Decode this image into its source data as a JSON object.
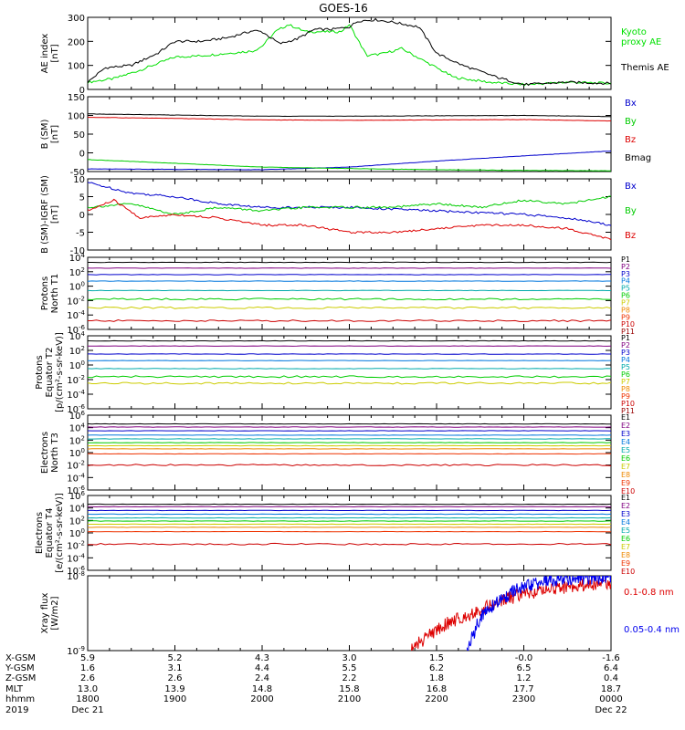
{
  "title": "GOES-16",
  "time_axis": {
    "tick_hours": [
      "1800",
      "1900",
      "2000",
      "2100",
      "2200",
      "2300",
      "0000"
    ],
    "ephemeris_rows": [
      {
        "label": "X-GSM",
        "values": [
          "5.9",
          "5.2",
          "4.3",
          "3.0",
          "1.5",
          "-0.0",
          "-1.6"
        ]
      },
      {
        "label": "Y-GSM",
        "values": [
          "1.6",
          "3.1",
          "4.4",
          "5.5",
          "6.2",
          "6.5",
          "6.4"
        ]
      },
      {
        "label": "Z-GSM",
        "values": [
          "2.6",
          "2.6",
          "2.4",
          "2.2",
          "1.8",
          "1.2",
          "0.4"
        ]
      },
      {
        "label": "MLT",
        "values": [
          "13.0",
          "13.9",
          "14.8",
          "15.8",
          "16.8",
          "17.7",
          "18.7"
        ]
      },
      {
        "label": "hhmm",
        "values": [
          "1800",
          "1900",
          "2000",
          "2100",
          "2200",
          "2300",
          "0000"
        ]
      }
    ],
    "year": "2019",
    "date_start": "Dec 21",
    "date_end": "Dec 22"
  },
  "chart_data": [
    {
      "type": "line",
      "ylabel": "AE index\n[nT]",
      "ylim": [
        0,
        300
      ],
      "yticks": [
        "0",
        "100",
        "200",
        "300"
      ],
      "series": [
        {
          "name": "Kyoto\nproxy AE",
          "color": "#00e000",
          "x": [
            0,
            0.3,
            0.6,
            1.0,
            1.3,
            1.6,
            1.9,
            2.0,
            2.15,
            2.3,
            2.5,
            2.7,
            2.9,
            3.0,
            3.2,
            3.4,
            3.6,
            3.8,
            4.0,
            4.2,
            4.6,
            5.0,
            5.5,
            6.0
          ],
          "values": [
            30,
            45,
            80,
            135,
            140,
            150,
            160,
            180,
            240,
            270,
            240,
            240,
            240,
            270,
            140,
            150,
            170,
            130,
            90,
            50,
            30,
            20,
            30,
            25
          ]
        },
        {
          "name": "Themis AE",
          "color": "#000000",
          "x": [
            0,
            0.2,
            0.5,
            0.8,
            1.0,
            1.3,
            1.6,
            1.9,
            2.0,
            2.2,
            2.4,
            2.6,
            2.8,
            3.0,
            3.1,
            3.3,
            3.5,
            3.8,
            4.0,
            4.3,
            4.7,
            5.0,
            5.5,
            6.0
          ],
          "values": [
            30,
            90,
            100,
            150,
            200,
            200,
            215,
            245,
            240,
            190,
            210,
            250,
            250,
            260,
            285,
            290,
            280,
            260,
            150,
            100,
            50,
            20,
            30,
            25
          ]
        }
      ]
    },
    {
      "type": "line",
      "ylabel": "B (SM)\n[nT]",
      "ylim": [
        -50,
        150
      ],
      "yticks": [
        "-50",
        "0",
        "50",
        "100",
        "150"
      ],
      "series": [
        {
          "name": "Bx",
          "color": "#0000cc",
          "x": [
            0,
            2,
            3,
            4,
            5,
            6
          ],
          "values": [
            -43,
            -45,
            -38,
            -22,
            -8,
            5
          ]
        },
        {
          "name": "By",
          "color": "#00cc00",
          "x": [
            0,
            1,
            2,
            3,
            4,
            5,
            6
          ],
          "values": [
            -18,
            -28,
            -38,
            -42,
            -45,
            -47,
            -48
          ]
        },
        {
          "name": "Bz",
          "color": "#dd0000",
          "x": [
            0,
            1,
            2,
            3,
            4,
            5,
            6
          ],
          "values": [
            95,
            92,
            88,
            87,
            88,
            89,
            85
          ]
        },
        {
          "name": "Bmag",
          "color": "#000000",
          "x": [
            0,
            1,
            2,
            3,
            4,
            5,
            6
          ],
          "values": [
            104,
            101,
            98,
            98,
            99,
            100,
            97
          ]
        }
      ]
    },
    {
      "type": "line",
      "ylabel": "B (SM)-IGRF (SM)\n[nT]",
      "ylim": [
        -10,
        10
      ],
      "yticks": [
        "-10",
        "-5",
        "0",
        "5",
        "10"
      ],
      "series": [
        {
          "name": "Bx",
          "color": "#0000cc",
          "x": [
            0,
            0.5,
            1,
            1.5,
            2,
            3,
            4,
            5,
            5.5,
            6
          ],
          "values": [
            9,
            6,
            5,
            3,
            2,
            2,
            1,
            0,
            -1,
            -3
          ]
        },
        {
          "name": "By",
          "color": "#00cc00",
          "x": [
            0,
            0.5,
            1,
            1.5,
            2,
            2.5,
            3,
            3.5,
            4,
            4.5,
            5,
            5.5,
            6
          ],
          "values": [
            2,
            3,
            0,
            2,
            1,
            2,
            2,
            2,
            3,
            2,
            4,
            3,
            5
          ]
        },
        {
          "name": "Bz",
          "color": "#dd0000",
          "x": [
            0,
            0.3,
            0.6,
            1,
            1.5,
            2,
            2.5,
            3,
            3.5,
            4,
            4.5,
            5,
            5.5,
            6
          ],
          "values": [
            1,
            4,
            -1,
            0,
            -1,
            -3,
            -3,
            -5,
            -5,
            -4,
            -3,
            -3,
            -4,
            -7
          ]
        }
      ]
    },
    {
      "type": "line",
      "ylabel": "Protons\nNorth T1",
      "ylim": [
        -6,
        4
      ],
      "yticks": [
        "10^4",
        "10^2",
        "10^0",
        "10^-2",
        "10^-4",
        "10^-6"
      ],
      "series": [
        {
          "name": "P1",
          "color": "#000000",
          "values": [
            3.3
          ]
        },
        {
          "name": "P2",
          "color": "#800080",
          "values": [
            2.5
          ]
        },
        {
          "name": "P3",
          "color": "#0000cc",
          "values": [
            1.6
          ]
        },
        {
          "name": "P4",
          "color": "#0077dd",
          "values": [
            0.7
          ]
        },
        {
          "name": "P5",
          "color": "#00aaaa",
          "values": [
            -0.6
          ]
        },
        {
          "name": "P6",
          "color": "#00cc00",
          "values": [
            -1.8
          ]
        },
        {
          "name": "P7",
          "color": "#cccc00",
          "values": [
            -3.0
          ]
        },
        {
          "name": "P8",
          "color": "#ee8800",
          "values": []
        },
        {
          "name": "P9",
          "color": "#ee3300",
          "values": []
        },
        {
          "name": "P10",
          "color": "#cc0000",
          "values": [
            -4.8
          ]
        },
        {
          "name": "P11",
          "color": "#990000",
          "values": []
        }
      ]
    },
    {
      "type": "line",
      "ylabel": "Protons\nEquator T2\n[p/(cm²-s-sr-keV)]",
      "ylim": [
        -6,
        4
      ],
      "yticks": [
        "10^4",
        "10^2",
        "10^0",
        "10^-2",
        "10^-4",
        "10^-6"
      ],
      "series": [
        {
          "name": "P1",
          "color": "#000000",
          "values": [
            3.3
          ]
        },
        {
          "name": "P2",
          "color": "#800080",
          "values": [
            2.6
          ]
        },
        {
          "name": "P3",
          "color": "#0000cc",
          "values": [
            1.5
          ]
        },
        {
          "name": "P4",
          "color": "#0077dd",
          "values": [
            0.6
          ]
        },
        {
          "name": "P5",
          "color": "#00aaaa",
          "values": [
            -0.5
          ]
        },
        {
          "name": "P6",
          "color": "#00cc00",
          "values": [
            -1.6
          ]
        },
        {
          "name": "P7",
          "color": "#cccc00",
          "values": [
            -2.5
          ]
        },
        {
          "name": "P8",
          "color": "#ee8800",
          "values": []
        },
        {
          "name": "P9",
          "color": "#ee3300",
          "values": []
        },
        {
          "name": "P10",
          "color": "#cc0000",
          "values": []
        },
        {
          "name": "P11",
          "color": "#990000",
          "values": []
        }
      ]
    },
    {
      "type": "line",
      "ylabel": "Electrons\nNorth T3",
      "ylim": [
        -6,
        6
      ],
      "yticks": [
        "10^6",
        "10^4",
        "10^2",
        "10^0",
        "10^-2",
        "10^-4",
        "10^-6"
      ],
      "series": [
        {
          "name": "E1",
          "color": "#000000",
          "values": [
            4.6
          ]
        },
        {
          "name": "E2",
          "color": "#800080",
          "values": [
            4.1
          ]
        },
        {
          "name": "E3",
          "color": "#0000cc",
          "values": [
            3.5
          ]
        },
        {
          "name": "E4",
          "color": "#0077dd",
          "values": [
            2.8
          ]
        },
        {
          "name": "E5",
          "color": "#00aaaa",
          "values": [
            2.2
          ]
        },
        {
          "name": "E6",
          "color": "#00cc00",
          "values": [
            1.6
          ]
        },
        {
          "name": "E7",
          "color": "#cccc00",
          "values": [
            1.1
          ]
        },
        {
          "name": "E8",
          "color": "#ee8800",
          "values": [
            0.6
          ]
        },
        {
          "name": "E9",
          "color": "#ee3300",
          "values": [
            -0.2
          ]
        },
        {
          "name": "E10",
          "color": "#cc0000",
          "values": [
            -2.0
          ]
        }
      ]
    },
    {
      "type": "line",
      "ylabel": "Electrons\nEquator T4\n[e/(cm²-s-sr-keV)]",
      "ylim": [
        -6,
        6
      ],
      "yticks": [
        "10^6",
        "10^4",
        "10^2",
        "10^0",
        "10^-2",
        "10^-4",
        "10^-6"
      ],
      "series": [
        {
          "name": "E1",
          "color": "#000000",
          "values": [
            4.6
          ]
        },
        {
          "name": "E2",
          "color": "#800080",
          "values": [
            4.2
          ]
        },
        {
          "name": "E3",
          "color": "#0000cc",
          "values": [
            3.6
          ]
        },
        {
          "name": "E4",
          "color": "#0077dd",
          "values": [
            3.0
          ]
        },
        {
          "name": "E5",
          "color": "#00aaaa",
          "values": [
            2.4
          ]
        },
        {
          "name": "E6",
          "color": "#00cc00",
          "values": [
            1.9
          ]
        },
        {
          "name": "E7",
          "color": "#cccc00",
          "values": [
            1.4
          ]
        },
        {
          "name": "E8",
          "color": "#ee8800",
          "values": [
            0.9
          ]
        },
        {
          "name": "E9",
          "color": "#ee3300",
          "values": [
            0.2
          ]
        },
        {
          "name": "E10",
          "color": "#cc0000",
          "values": [
            -1.8
          ]
        }
      ]
    },
    {
      "type": "line",
      "ylabel": "Xray flux\n[W/m2]",
      "ylim": [
        -9,
        -8
      ],
      "yticks": [
        "10^-8",
        "10^-9"
      ],
      "series": [
        {
          "name": "0.1-0.8 nm",
          "color": "#dd0000",
          "x": [
            3.7,
            3.9,
            4.1,
            4.3,
            4.5,
            4.7,
            4.9,
            5.1,
            5.3,
            5.5,
            5.7,
            5.9,
            6.0
          ],
          "values": [
            -9.0,
            -8.8,
            -8.65,
            -8.55,
            -8.45,
            -8.35,
            -8.28,
            -8.22,
            -8.18,
            -8.15,
            -8.12,
            -8.1,
            -8.1
          ]
        },
        {
          "name": "0.05-0.4 nm",
          "color": "#0000ee",
          "x": [
            4.35,
            4.5,
            4.7,
            4.9,
            5.1,
            5.3,
            5.5,
            5.7,
            5.9,
            6.0
          ],
          "values": [
            -9.0,
            -8.55,
            -8.35,
            -8.2,
            -8.12,
            -8.06,
            -8.04,
            -8.03,
            -8.02,
            -8.02
          ]
        }
      ]
    }
  ]
}
